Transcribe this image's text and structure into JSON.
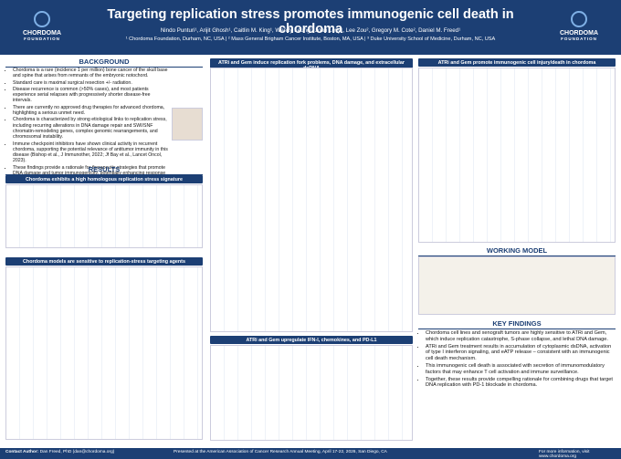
{
  "header": {
    "title": "Targeting replication stress promotes immunogenic cell death in chordoma",
    "authors": "Nindo Punturi¹, Arijit Ghosh¹, Caitlin M. King¹, Wendy Leung², Joan Levy¹, Lee Zou², Gregory M. Cote², Daniel M. Freed¹",
    "affiliations": "¹ Chordoma Foundation, Durham, NC, USA | ² Mass General Brigham Cancer Institute, Boston, MA, USA | ³ Duke University School of Medicine, Durham, NC, USA",
    "logo_left": "CHORDOMA",
    "logo_left_sub": "FOUNDATION",
    "logo_right": "CHORDOMA",
    "logo_right_sub": "FOUNDATION"
  },
  "background": {
    "heading": "BACKGROUND",
    "bullets": [
      "Chordoma is a rare (incidence 1 per million) bone cancer of the skull base and spine that arises from remnants of the embryonic notochord.",
      "Standard care is maximal surgical resection +/- radiation.",
      "Disease recurrence is common (>50% cases), and most patients experience serial relapses with progressively shorter disease-free intervals.",
      "There are currently no approved drug therapies for advanced chordoma, highlighting a serious unmet need.",
      "Chordoma is characterized by strong etiological links to replication stress, including recurring alterations in DNA damage repair and SWI/SNF chromatin-remodeling genes, complex genomic rearrangements, and chromosomal instability.",
      "Immune checkpoint inhibitors have shown clinical activity in recurrent chordoma, supporting the potential relevance of antitumor immunity in this disease (Bishop et al., J Immunother, 2022; Jf Bay et al., Lancet Oncol, 2023).",
      "These findings provide a rationale for therapeutic strategies that promote DNA damage and tumor immunogenicity, potentially enhancing response to immunotherapy."
    ]
  },
  "results": {
    "heading": "RESULTS",
    "panels": [
      "Chordoma exhibits a high homologous replication stress signature",
      "Chordoma models are sensitive to replication-stress targeting agents",
      "ATRi and Gem induce replication fork problems, DNA damage, and extracellular dsDNA",
      "ATRi and Gem upregulate IFN-I, chemokines, and PD-L1",
      "ATRi and Gem promote immunogenic cell injury/death in chordoma"
    ]
  },
  "working_model": {
    "heading": "WORKING MODEL"
  },
  "key_findings": {
    "heading": "KEY FINDINGS",
    "bullets": [
      "Chordoma cell lines and xenograft tumors are highly sensitive to ATRi and Gem, which induce replication catastrophe, S-phase collapse, and lethal DNA damage.",
      "ATRi and Gem treatment results in accumulation of cytoplasmic dsDNA, activation of type I interferon signaling, and eATP release – consistent with an immunogenic cell death mechanism.",
      "This immunogenic cell death is associated with secretion of immunomodulatory factors that may enhance T cell activation and immune surveillance.",
      "Together, these results provide compelling rationale for combining drugs that target DNA replication with PD-1 blockade in chordoma."
    ]
  },
  "footer": {
    "contact_label": "Contact Author:",
    "contact": "Dan Freed, PhD (dan@chordoma.org)",
    "presented": "Presented at the American Association of Cancer Research Annual Meeting, April 17-22, 2026, San Diego, CA",
    "more_label": "For more information,",
    "more": "visit www.chordoma.org"
  }
}
